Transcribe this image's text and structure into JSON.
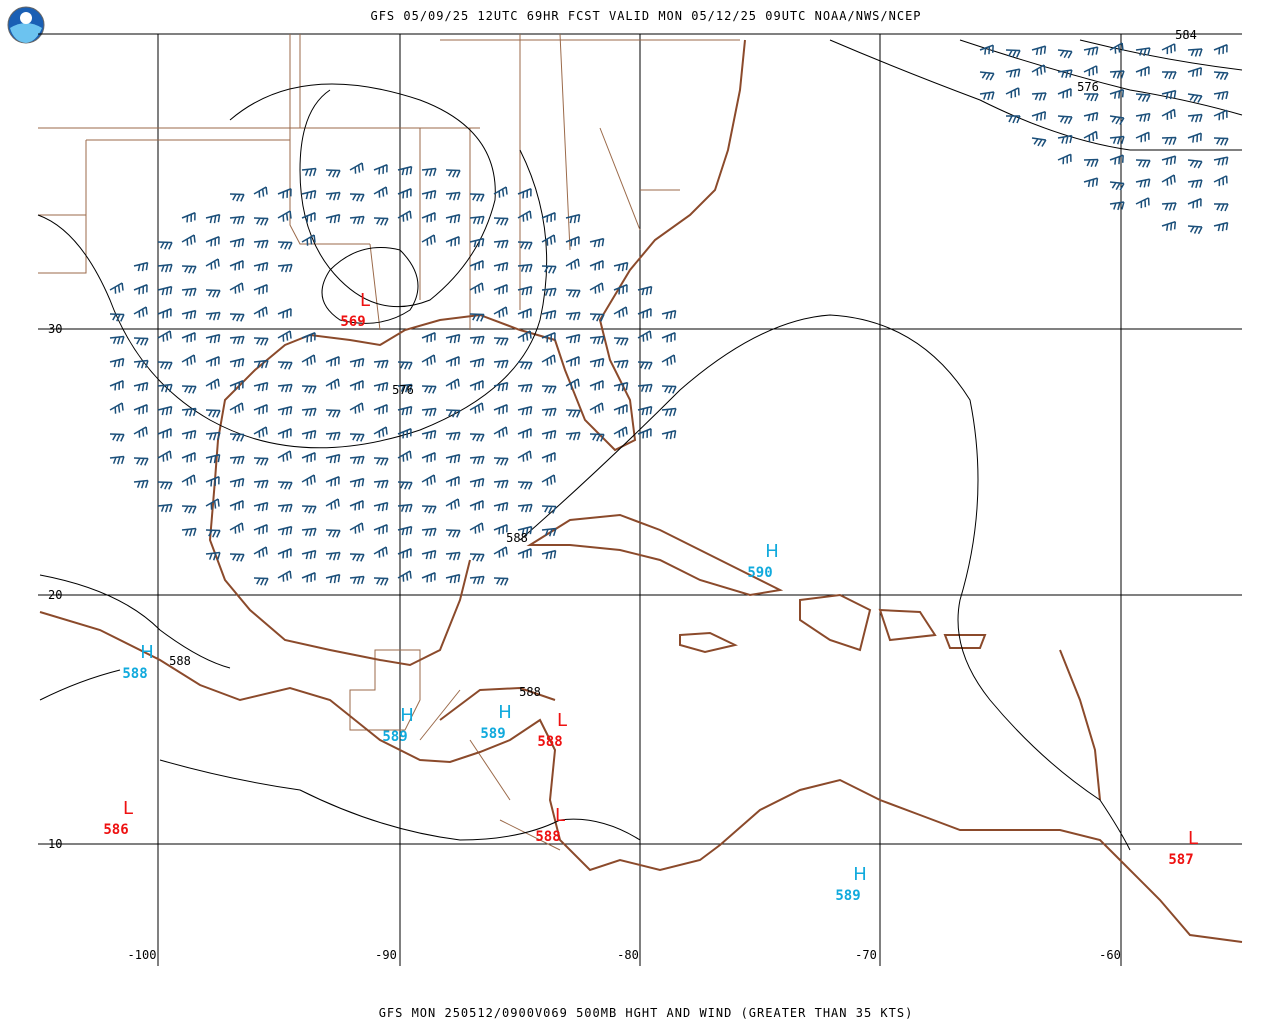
{
  "header": {
    "title": "GFS 05/09/25 12UTC 69HR FCST VALID MON 05/12/25 09UTC NOAA/NWS/NCEP"
  },
  "footer": {
    "caption": "GFS MON 250512/0900V069 500MB HGHT AND WIND (GREATER THAN 35 KTS)"
  },
  "map": {
    "lat_labels": [
      "30",
      "20",
      "10"
    ],
    "lon_labels": [
      "-100",
      "-90",
      "-80",
      "-70",
      "-60"
    ],
    "centers": [
      {
        "kind": "L",
        "value": "569"
      },
      {
        "kind": "H",
        "value": "590"
      },
      {
        "kind": "H",
        "value": "588"
      },
      {
        "kind": "H",
        "value": "589"
      },
      {
        "kind": "H",
        "value": "589"
      },
      {
        "kind": "L",
        "value": "588"
      },
      {
        "kind": "L",
        "value": "586"
      },
      {
        "kind": "L",
        "value": "588"
      },
      {
        "kind": "H",
        "value": "589"
      },
      {
        "kind": "L",
        "value": "587"
      }
    ],
    "contour_labels": [
      "576",
      "588",
      "588",
      "588",
      "576",
      "584"
    ]
  }
}
